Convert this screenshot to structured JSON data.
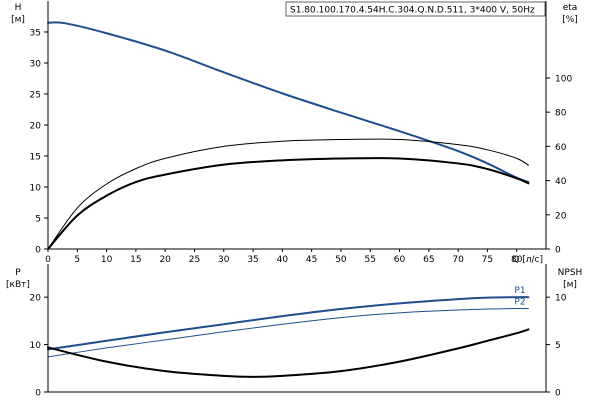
{
  "title": "S1.80.100.170.4.54H.C.304.Q.N.D.511, 3*400 V, 50Hz",
  "colors": {
    "blue": "#1f4e8c",
    "black": "#000000"
  },
  "chart_data": [
    {
      "type": "line",
      "x_axis": {
        "label": "Q [л/с]",
        "range": [
          0,
          85
        ],
        "ticks": [
          0,
          5,
          10,
          15,
          20,
          25,
          30,
          35,
          40,
          45,
          50,
          55,
          60,
          65,
          70,
          75,
          80
        ]
      },
      "left_axis": {
        "label_top": "H",
        "label_unit": "[м]",
        "range": [
          0,
          40
        ],
        "ticks": [
          0,
          5,
          10,
          15,
          20,
          25,
          30,
          35
        ]
      },
      "right_axis": {
        "label_top": "eta",
        "label_unit": "[%]",
        "range": [
          0,
          145
        ],
        "ticks": [
          0,
          20,
          40,
          60,
          80,
          100
        ]
      },
      "series": [
        {
          "axis": "left",
          "color": "#1f4e8c",
          "width": 2,
          "x": [
            0,
            3,
            10,
            20,
            30,
            40,
            50,
            60,
            70,
            75,
            80,
            82
          ],
          "y": [
            36.5,
            36.4,
            34.8,
            32.0,
            28.5,
            25.1,
            22.0,
            19.0,
            15.8,
            13.8,
            11.5,
            10.8
          ]
        },
        {
          "axis": "right",
          "color": "#000000",
          "width": 1,
          "x": [
            0,
            5,
            10,
            15,
            20,
            30,
            40,
            50,
            60,
            70,
            75,
            80,
            82
          ],
          "y": [
            0,
            24,
            38,
            47,
            53,
            60,
            63,
            64,
            64,
            61,
            58,
            53,
            49
          ]
        },
        {
          "axis": "left",
          "color": "#000000",
          "width": 2,
          "x": [
            0,
            5,
            10,
            15,
            20,
            30,
            40,
            50,
            60,
            70,
            75,
            80,
            82
          ],
          "y": [
            0,
            5.4,
            8.6,
            10.8,
            12.0,
            13.6,
            14.3,
            14.6,
            14.6,
            13.8,
            12.9,
            11.4,
            10.6
          ]
        }
      ]
    },
    {
      "type": "line",
      "x_axis": {
        "range": [
          0,
          85
        ]
      },
      "left_axis": {
        "label_top": "P",
        "label_unit": "[кВт]",
        "range": [
          0,
          27
        ],
        "ticks": [
          0,
          10,
          20
        ]
      },
      "right_axis": {
        "label_top": "NPSH",
        "label_unit": "[м]",
        "range": [
          0,
          13.5
        ],
        "ticks": [
          0,
          5,
          10
        ]
      },
      "series": [
        {
          "name": "P1",
          "axis": "left",
          "color": "#1f4e8c",
          "width": 2,
          "x": [
            0,
            10,
            20,
            30,
            40,
            50,
            60,
            70,
            75,
            80,
            82
          ],
          "y": [
            9.0,
            10.8,
            12.6,
            14.3,
            16.0,
            17.5,
            18.7,
            19.6,
            19.9,
            20.0,
            20.0
          ]
        },
        {
          "name": "P2",
          "axis": "left",
          "color": "#1f4e8c",
          "width": 1,
          "x": [
            0,
            10,
            20,
            30,
            40,
            50,
            60,
            70,
            75,
            80,
            82
          ],
          "y": [
            7.4,
            9.3,
            11.0,
            12.7,
            14.3,
            15.7,
            16.7,
            17.3,
            17.5,
            17.6,
            17.6
          ]
        },
        {
          "axis": "right",
          "color": "#000000",
          "width": 2,
          "x": [
            0,
            10,
            20,
            30,
            35,
            40,
            50,
            60,
            70,
            75,
            80,
            82
          ],
          "y": [
            4.7,
            3.2,
            2.2,
            1.7,
            1.6,
            1.7,
            2.2,
            3.2,
            4.6,
            5.4,
            6.2,
            6.6
          ]
        }
      ]
    }
  ]
}
